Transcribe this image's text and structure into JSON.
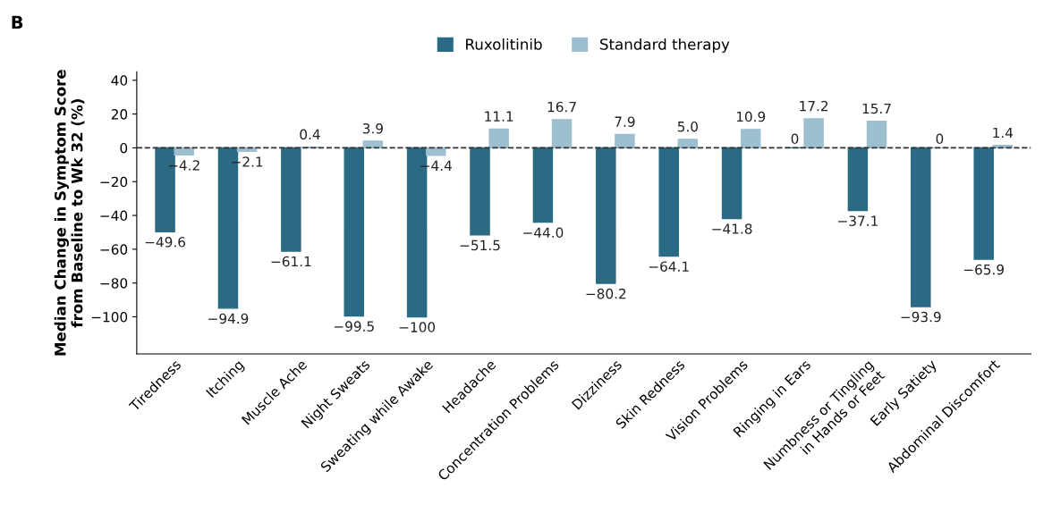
{
  "chart_data": {
    "type": "bar",
    "ylabel": "Median Change in Symptom Score\nfrom Baseline to Wk 32 (%)",
    "annotations": [
      "B"
    ],
    "categories": [
      "Tiredness",
      "Itching",
      "Muscle Ache",
      "Night Sweats",
      "Sweating while Awake",
      "Headache",
      "Concentration Problems",
      "Dizziness",
      "Skin Redness",
      "Vision Problems",
      "Ringing in Ears",
      "Numbness or Tingling\nin Hands or Feet",
      "Early Satiety",
      "Abdominal Discomfort"
    ],
    "series": [
      {
        "name": "Ruxolitinib",
        "color": "#2a6a84",
        "values": [
          -49.6,
          -94.9,
          -61.1,
          -99.5,
          -100,
          -51.5,
          -44.0,
          -80.2,
          -64.1,
          -41.8,
          0,
          -37.1,
          -93.9,
          -65.9
        ],
        "value_labels": [
          "−49.6",
          "−94.9",
          "−61.1",
          "−99.5",
          "−100",
          "−51.5",
          "−44.0",
          "−80.2",
          "−64.1",
          "−41.8",
          "0",
          "−37.1",
          "−93.9",
          "−65.9"
        ]
      },
      {
        "name": "Standard therapy",
        "color": "#9dbfcf",
        "values": [
          -4.2,
          -2.1,
          0.4,
          3.9,
          -4.4,
          11.1,
          16.7,
          7.9,
          5.0,
          10.9,
          17.2,
          15.7,
          0,
          1.4
        ],
        "value_labels": [
          "−4.2",
          "−2.1",
          "0.4",
          "3.9",
          "−4.4",
          "11.1",
          "16.7",
          "7.9",
          "5.0",
          "10.9",
          "17.2",
          "15.7",
          "0",
          "1.4"
        ]
      }
    ],
    "ylim": [
      -122,
      45
    ],
    "yticks": [
      {
        "value": 40,
        "label": "40"
      },
      {
        "value": 20,
        "label": "20"
      },
      {
        "value": 0,
        "label": "0"
      },
      {
        "value": -20,
        "label": "−20"
      },
      {
        "value": -40,
        "label": "−40"
      },
      {
        "value": -60,
        "label": "−60"
      },
      {
        "value": -80,
        "label": "−80"
      },
      {
        "value": -100,
        "label": "−100"
      }
    ],
    "ref_lines": [
      {
        "axis": "y",
        "value": 0,
        "color": "#333333",
        "line_style": "dashed"
      }
    ],
    "grid": false,
    "legend": "top"
  }
}
